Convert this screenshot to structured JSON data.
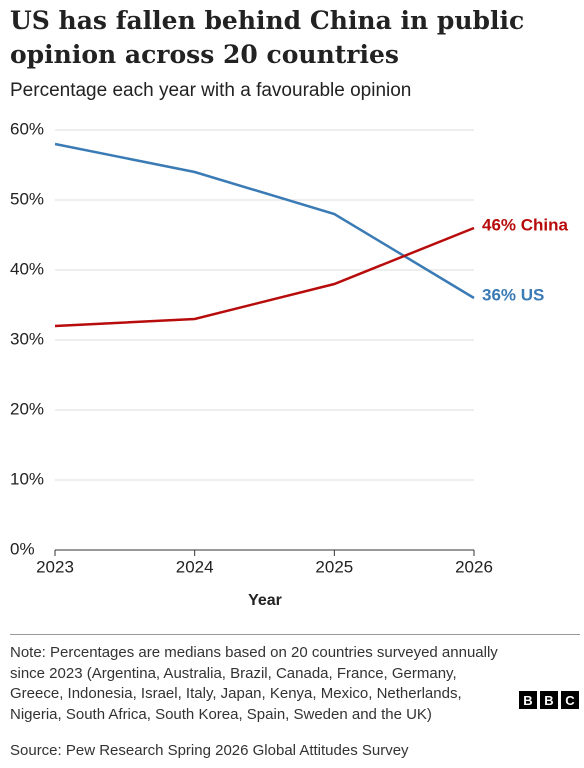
{
  "chart_data": {
    "type": "line",
    "title": "US has fallen behind China in public opinion across 20 countries",
    "subtitle": "Percentage each year with a favourable opinion",
    "x_label": "Year",
    "x": [
      2023,
      2024,
      2025,
      2026
    ],
    "series": [
      {
        "color": "#3a7bb5",
        "values": [
          58,
          54,
          48,
          36
        ],
        "value_labels": [
          null,
          null,
          null,
          "36% US"
        ]
      },
      {
        "color": "#b80c0c",
        "values": [
          32,
          33,
          38,
          46
        ],
        "value_labels": [
          null,
          null,
          null,
          "46% China"
        ]
      }
    ],
    "xlim": [
      2023,
      2026
    ],
    "xticks": [
      2023,
      2024,
      2025,
      2026
    ],
    "ylim": [
      0,
      60
    ],
    "yticks": [
      {
        "value": 0,
        "label": "0%"
      },
      {
        "value": 10,
        "label": "10%"
      },
      {
        "value": 20,
        "label": "20%"
      },
      {
        "value": 30,
        "label": "30%"
      },
      {
        "value": 40,
        "label": "40%"
      },
      {
        "value": 50,
        "label": "50%"
      },
      {
        "value": 60,
        "label": "60%"
      }
    ],
    "grid": true,
    "note": "Note: Percentages are medians based on 20 countries surveyed annually since 2023 (Argentina, Australia, Brazil, Canada, France, Germany, Greece, Indonesia, Israel, Italy, Japan, Kenya, Mexico, Netherlands, Nigeria, South Africa, South Korea, Spain, Sweden and the UK)",
    "source": "Source: Pew Research Spring 2026 Global Attitudes Survey",
    "logo": [
      "B",
      "B",
      "C"
    ]
  }
}
